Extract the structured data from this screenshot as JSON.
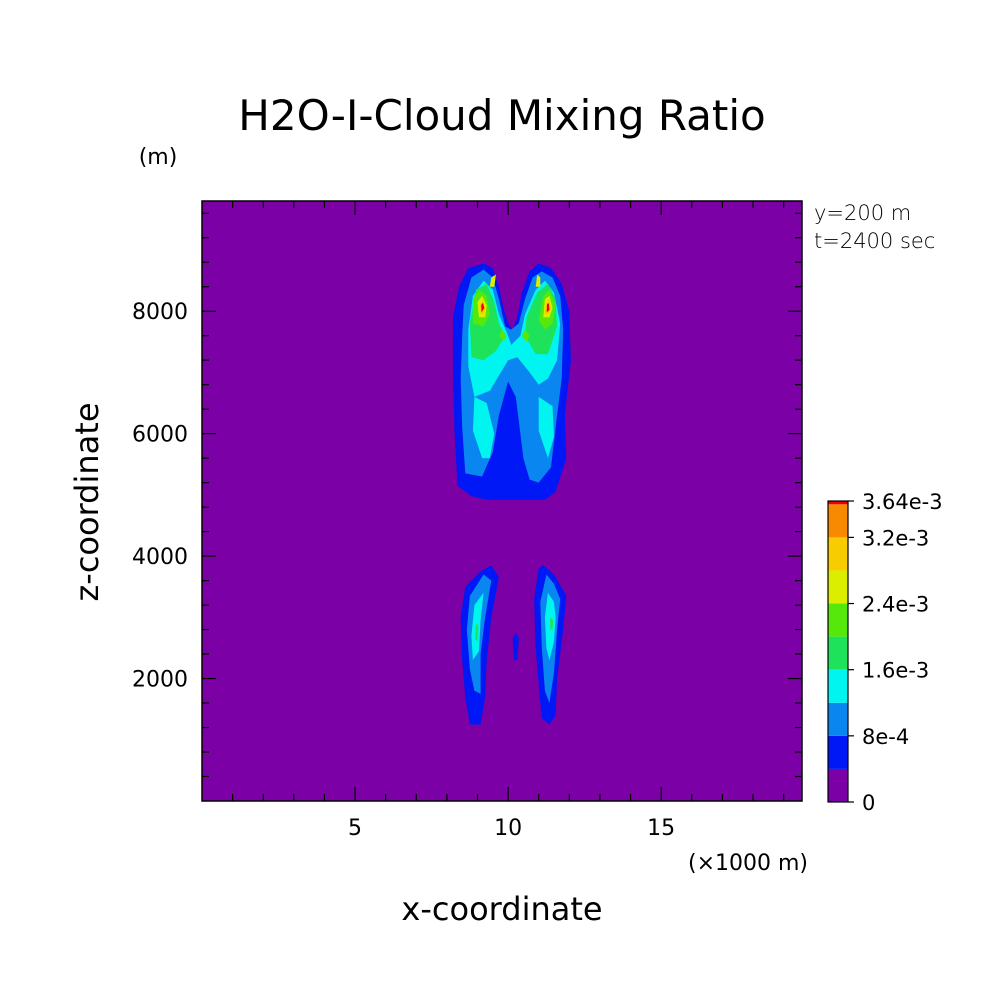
{
  "chart_data": {
    "type": "heatmap",
    "title": "H2O-I-Cloud Mixing Ratio",
    "xlabel": "x-coordinate",
    "ylabel": "z-coordinate",
    "x_unit": "(×1000 m)",
    "y_unit": "(m)",
    "annotations": [
      "y=200 m",
      "t=2400 sec"
    ],
    "xlim": [
      0,
      19.6
    ],
    "ylim": [
      0,
      9800
    ],
    "x_ticks": [
      5,
      10,
      15
    ],
    "x_tick_labels": [
      "5",
      "10",
      "15"
    ],
    "y_ticks": [
      2000,
      4000,
      6000,
      8000
    ],
    "y_tick_labels": [
      "2000",
      "4000",
      "6000",
      "8000"
    ],
    "grid": false,
    "colorbar": {
      "max": 0.00364,
      "levels": [
        {
          "from": 0,
          "to": 0.0004,
          "color": "#7b00a5"
        },
        {
          "from": 0.0004,
          "to": 0.0008,
          "color": "#0018f5"
        },
        {
          "from": 0.0008,
          "to": 0.0012,
          "color": "#0a86f0"
        },
        {
          "from": 0.0012,
          "to": 0.0016,
          "color": "#00f4f0"
        },
        {
          "from": 0.0016,
          "to": 0.002,
          "color": "#1ee35a"
        },
        {
          "from": 0.002,
          "to": 0.0024,
          "color": "#55e80a"
        },
        {
          "from": 0.0024,
          "to": 0.0028,
          "color": "#dcee00"
        },
        {
          "from": 0.0028,
          "to": 0.0032,
          "color": "#f7cc00"
        },
        {
          "from": 0.0032,
          "to": 0.0036,
          "color": "#f78a00"
        },
        {
          "from": 0.0036,
          "to": 0.00364,
          "color": "#ee0000"
        }
      ],
      "tick_values": [
        0,
        0.0008,
        0.0016,
        0.0024,
        0.0032,
        0.00364
      ],
      "tick_labels": [
        "0",
        "8e-4",
        "1.6e-3",
        "2.4e-3",
        "3.2e-3",
        "3.64e-3"
      ]
    },
    "contour_regions": [
      {
        "level": 1,
        "pts": [
          [
            8.35,
            5150
          ],
          [
            8.25,
            6000
          ],
          [
            8.2,
            7000
          ],
          [
            8.2,
            7900
          ],
          [
            8.4,
            8400
          ],
          [
            8.7,
            8700
          ],
          [
            9.2,
            8780
          ],
          [
            9.5,
            8700
          ],
          [
            9.7,
            8400
          ],
          [
            9.85,
            8050
          ],
          [
            10.0,
            7800
          ],
          [
            10.15,
            7700
          ],
          [
            10.3,
            7900
          ],
          [
            10.45,
            8300
          ],
          [
            10.7,
            8650
          ],
          [
            11.0,
            8780
          ],
          [
            11.4,
            8700
          ],
          [
            11.75,
            8450
          ],
          [
            12.0,
            8000
          ],
          [
            12.05,
            7200
          ],
          [
            11.85,
            6300
          ],
          [
            11.9,
            5600
          ],
          [
            11.55,
            5050
          ],
          [
            11.2,
            4920
          ],
          [
            10.3,
            4920
          ],
          [
            9.3,
            4920
          ],
          [
            8.8,
            4980
          ]
        ]
      },
      {
        "level": 2,
        "pts": [
          [
            8.6,
            5350
          ],
          [
            8.5,
            6100
          ],
          [
            8.45,
            6900
          ],
          [
            8.5,
            7600
          ],
          [
            8.55,
            8100
          ],
          [
            8.8,
            8550
          ],
          [
            9.2,
            8680
          ],
          [
            9.5,
            8550
          ],
          [
            9.7,
            8200
          ],
          [
            9.9,
            7750
          ],
          [
            10.1,
            7700
          ],
          [
            10.35,
            7800
          ],
          [
            10.55,
            8200
          ],
          [
            10.8,
            8550
          ],
          [
            11.1,
            8650
          ],
          [
            11.45,
            8550
          ],
          [
            11.7,
            8250
          ],
          [
            11.8,
            7700
          ],
          [
            11.75,
            6900
          ],
          [
            11.55,
            6100
          ],
          [
            11.4,
            5450
          ],
          [
            11.0,
            5200
          ],
          [
            10.7,
            5250
          ],
          [
            10.5,
            5600
          ],
          [
            10.25,
            6600
          ],
          [
            10.0,
            6850
          ],
          [
            9.7,
            6300
          ],
          [
            9.5,
            5700
          ],
          [
            9.15,
            5300
          ]
        ]
      },
      {
        "level": 3,
        "pts": [
          [
            8.9,
            6600
          ],
          [
            8.7,
            7100
          ],
          [
            8.7,
            7700
          ],
          [
            8.85,
            8250
          ],
          [
            9.2,
            8500
          ],
          [
            9.5,
            8350
          ],
          [
            9.7,
            7950
          ],
          [
            10.0,
            7600
          ],
          [
            10.1,
            7450
          ],
          [
            10.4,
            7600
          ],
          [
            10.55,
            7950
          ],
          [
            10.9,
            8350
          ],
          [
            11.2,
            8500
          ],
          [
            11.5,
            8300
          ],
          [
            11.7,
            7800
          ],
          [
            11.6,
            7200
          ],
          [
            11.3,
            6900
          ],
          [
            11.0,
            6800
          ],
          [
            10.7,
            7000
          ],
          [
            10.3,
            7250
          ],
          [
            10.0,
            7200
          ],
          [
            9.7,
            6950
          ],
          [
            9.4,
            6700
          ]
        ]
      },
      {
        "level": 3,
        "pts": [
          [
            9.15,
            5600
          ],
          [
            8.85,
            6050
          ],
          [
            8.9,
            6600
          ],
          [
            9.3,
            6500
          ],
          [
            9.55,
            6000
          ],
          [
            9.4,
            5600
          ]
        ]
      },
      {
        "level": 3,
        "pts": [
          [
            11.3,
            5600
          ],
          [
            11.0,
            6050
          ],
          [
            11.0,
            6600
          ],
          [
            11.45,
            6450
          ],
          [
            11.5,
            5950
          ]
        ]
      },
      {
        "level": 4,
        "pts": [
          [
            8.8,
            7250
          ],
          [
            8.75,
            7800
          ],
          [
            8.95,
            8350
          ],
          [
            9.3,
            8450
          ],
          [
            9.55,
            8150
          ],
          [
            9.7,
            7800
          ],
          [
            9.9,
            7600
          ],
          [
            9.6,
            7350
          ],
          [
            9.2,
            7200
          ]
        ]
      },
      {
        "level": 4,
        "pts": [
          [
            10.55,
            7600
          ],
          [
            10.6,
            7900
          ],
          [
            10.95,
            8300
          ],
          [
            11.3,
            8450
          ],
          [
            11.55,
            8200
          ],
          [
            11.6,
            7750
          ],
          [
            11.3,
            7300
          ],
          [
            10.9,
            7300
          ]
        ]
      },
      {
        "level": 5,
        "pts": [
          [
            8.85,
            7800
          ],
          [
            8.85,
            8200
          ],
          [
            9.05,
            8350
          ],
          [
            9.3,
            8250
          ],
          [
            9.4,
            7950
          ],
          [
            9.2,
            7750
          ]
        ]
      },
      {
        "level": 5,
        "pts": [
          [
            11.0,
            7850
          ],
          [
            11.15,
            8250
          ],
          [
            11.35,
            8350
          ],
          [
            11.55,
            8100
          ],
          [
            11.45,
            7800
          ],
          [
            11.2,
            7700
          ]
        ]
      },
      {
        "level": 5,
        "pts": [
          [
            9.7,
            7600
          ],
          [
            9.8,
            7700
          ],
          [
            9.95,
            7600
          ],
          [
            9.85,
            7500
          ]
        ]
      },
      {
        "level": 5,
        "pts": [
          [
            10.45,
            7600
          ],
          [
            10.55,
            7700
          ],
          [
            10.7,
            7600
          ],
          [
            10.6,
            7500
          ]
        ]
      },
      {
        "level": 6,
        "pts": [
          [
            9.05,
            7900
          ],
          [
            9.0,
            8150
          ],
          [
            9.15,
            8250
          ],
          [
            9.3,
            8100
          ],
          [
            9.25,
            7900
          ]
        ]
      },
      {
        "level": 6,
        "pts": [
          [
            11.15,
            7900
          ],
          [
            11.2,
            8200
          ],
          [
            11.35,
            8250
          ],
          [
            11.45,
            8050
          ],
          [
            11.35,
            7900
          ]
        ]
      },
      {
        "level": 6,
        "pts": [
          [
            9.4,
            8400
          ],
          [
            9.45,
            8550
          ],
          [
            9.6,
            8600
          ],
          [
            9.55,
            8400
          ]
        ]
      },
      {
        "level": 6,
        "pts": [
          [
            10.9,
            8400
          ],
          [
            10.95,
            8600
          ],
          [
            11.05,
            8550
          ],
          [
            11.05,
            8400
          ]
        ]
      },
      {
        "level": 7,
        "pts": [
          [
            9.1,
            7950
          ],
          [
            9.08,
            8120
          ],
          [
            9.18,
            8180
          ],
          [
            9.25,
            8050
          ],
          [
            9.2,
            7950
          ]
        ]
      },
      {
        "level": 7,
        "pts": [
          [
            11.2,
            7950
          ],
          [
            11.25,
            8150
          ],
          [
            11.35,
            8180
          ],
          [
            11.4,
            8050
          ],
          [
            11.3,
            7950
          ]
        ]
      },
      {
        "level": 9,
        "pts": [
          [
            9.13,
            7980
          ],
          [
            9.12,
            8100
          ],
          [
            9.18,
            8140
          ],
          [
            9.22,
            8050
          ]
        ]
      },
      {
        "level": 9,
        "pts": [
          [
            11.26,
            7980
          ],
          [
            11.27,
            8120
          ],
          [
            11.33,
            8130
          ],
          [
            11.35,
            8020
          ]
        ]
      },
      {
        "level": 1,
        "pts": [
          [
            8.6,
            3500
          ],
          [
            8.45,
            3000
          ],
          [
            8.5,
            2300
          ],
          [
            8.6,
            1700
          ],
          [
            8.75,
            1250
          ],
          [
            9.1,
            1250
          ],
          [
            9.25,
            1700
          ],
          [
            9.3,
            2300
          ],
          [
            9.45,
            3000
          ],
          [
            9.7,
            3650
          ],
          [
            9.45,
            3850
          ],
          [
            9.1,
            3750
          ]
        ]
      },
      {
        "level": 1,
        "pts": [
          [
            11.0,
            3800
          ],
          [
            10.85,
            3300
          ],
          [
            10.9,
            2500
          ],
          [
            11.0,
            1900
          ],
          [
            11.1,
            1350
          ],
          [
            11.35,
            1250
          ],
          [
            11.55,
            1400
          ],
          [
            11.6,
            2000
          ],
          [
            11.8,
            2800
          ],
          [
            11.9,
            3350
          ],
          [
            11.5,
            3700
          ],
          [
            11.15,
            3850
          ]
        ]
      },
      {
        "level": 1,
        "pts": [
          [
            10.15,
            2650
          ],
          [
            10.25,
            2750
          ],
          [
            10.35,
            2650
          ],
          [
            10.3,
            2300
          ],
          [
            10.2,
            2300
          ]
        ]
      },
      {
        "level": 2,
        "pts": [
          [
            8.75,
            3350
          ],
          [
            8.65,
            2800
          ],
          [
            8.75,
            2150
          ],
          [
            8.9,
            1800
          ],
          [
            9.1,
            1750
          ],
          [
            9.1,
            2400
          ],
          [
            9.25,
            3000
          ],
          [
            9.45,
            3600
          ],
          [
            9.2,
            3700
          ]
        ]
      },
      {
        "level": 2,
        "pts": [
          [
            11.25,
            3700
          ],
          [
            11.05,
            3250
          ],
          [
            11.1,
            2500
          ],
          [
            11.2,
            1800
          ],
          [
            11.35,
            1600
          ],
          [
            11.5,
            2100
          ],
          [
            11.6,
            2800
          ],
          [
            11.7,
            3300
          ],
          [
            11.5,
            3550
          ]
        ]
      },
      {
        "level": 3,
        "pts": [
          [
            8.9,
            3200
          ],
          [
            8.8,
            2700
          ],
          [
            8.85,
            2300
          ],
          [
            9.05,
            2450
          ],
          [
            9.1,
            2950
          ],
          [
            9.2,
            3400
          ]
        ]
      },
      {
        "level": 3,
        "pts": [
          [
            11.3,
            3400
          ],
          [
            11.2,
            3000
          ],
          [
            11.25,
            2500
          ],
          [
            11.35,
            2300
          ],
          [
            11.5,
            2600
          ],
          [
            11.55,
            3000
          ],
          [
            11.5,
            3250
          ]
        ]
      },
      {
        "level": 4,
        "pts": [
          [
            8.95,
            2900
          ],
          [
            8.92,
            2650
          ],
          [
            9.0,
            2600
          ],
          [
            9.03,
            2850
          ]
        ]
      },
      {
        "level": 4,
        "pts": [
          [
            11.37,
            3000
          ],
          [
            11.38,
            2800
          ],
          [
            11.45,
            2800
          ],
          [
            11.47,
            2950
          ]
        ]
      }
    ]
  }
}
